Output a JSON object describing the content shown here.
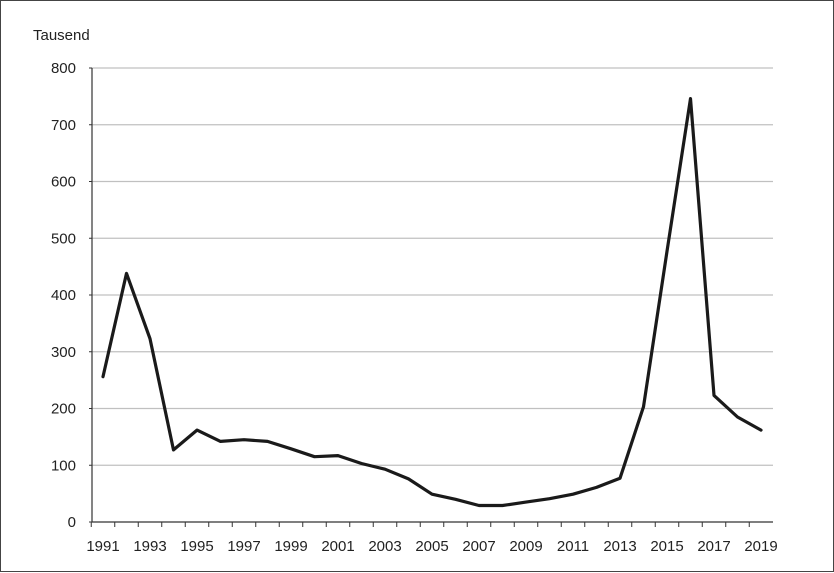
{
  "chart_data": {
    "type": "line",
    "unit_label": "Tausend",
    "x": [
      1991,
      1992,
      1993,
      1994,
      1995,
      1996,
      1997,
      1998,
      1999,
      2000,
      2001,
      2002,
      2003,
      2004,
      2005,
      2006,
      2007,
      2008,
      2009,
      2010,
      2011,
      2012,
      2013,
      2014,
      2015,
      2016,
      2017,
      2018,
      2019
    ],
    "series": [
      {
        "values": [
          256,
          438,
          323,
          127,
          162,
          142,
          145,
          142,
          129,
          115,
          117,
          103,
          93,
          76,
          49,
          40,
          29,
          29,
          35,
          41,
          49,
          61,
          77,
          203,
          477,
          746,
          223,
          185,
          162
        ]
      }
    ],
    "xlim": [
      1991,
      2019
    ],
    "ylim": [
      0,
      800
    ],
    "y_ticks": [
      0,
      100,
      200,
      300,
      400,
      500,
      600,
      700,
      800
    ],
    "x_ticks": [
      1991,
      1993,
      1995,
      1997,
      1999,
      2001,
      2003,
      2005,
      2007,
      2009,
      2011,
      2013,
      2015,
      2017,
      2019
    ],
    "grid": true,
    "legend": "none",
    "colors": {
      "line": "#1a1a1a",
      "grid": "#c0c0c0",
      "axis": "#333333"
    }
  }
}
